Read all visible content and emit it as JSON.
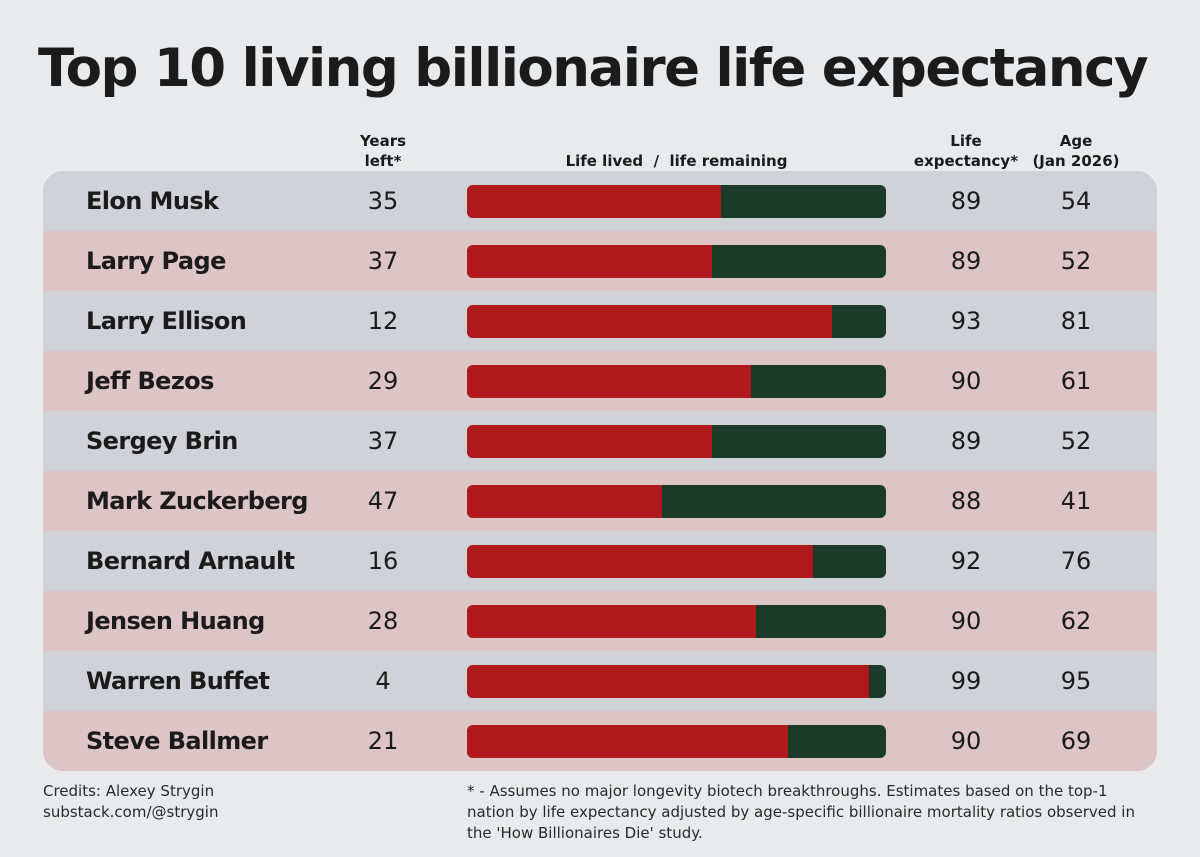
{
  "title": "Top 10 living billionaire life expectancy",
  "headers": {
    "years_left": [
      "Years",
      "left*"
    ],
    "bar": "Life lived  /  life remaining",
    "life_expectancy": [
      "Life",
      "expectancy*"
    ],
    "age": [
      "Age",
      "(Jan 2026)"
    ]
  },
  "colors": {
    "lived": "#b0191b",
    "remaining": "#1c3a2a",
    "row_gray": "#cfd2d7",
    "row_pink": "#dcc4c7"
  },
  "chart_data": {
    "type": "bar",
    "categories": [
      "Elon Musk",
      "Larry Page",
      "Larry Ellison",
      "Jeff Bezos",
      "Sergey Brin",
      "Mark Zuckerberg",
      "Bernard Arnault",
      "Jensen Huang",
      "Warren Buffet",
      "Steve Ballmer"
    ],
    "series": [
      {
        "name": "Life lived",
        "values": [
          54,
          52,
          81,
          61,
          52,
          41,
          76,
          62,
          95,
          69
        ]
      },
      {
        "name": "life remaining",
        "values": [
          35,
          37,
          12,
          29,
          37,
          47,
          16,
          28,
          4,
          21
        ]
      }
    ],
    "years_left": [
      35,
      37,
      12,
      29,
      37,
      47,
      16,
      28,
      4,
      21
    ],
    "life_expectancy": [
      89,
      89,
      93,
      90,
      89,
      88,
      92,
      90,
      99,
      90
    ],
    "age": [
      54,
      52,
      81,
      61,
      52,
      41,
      76,
      62,
      95,
      69
    ],
    "stacked": true,
    "orientation": "horizontal"
  },
  "footer": {
    "credits_line1": "Credits: Alexey Strygin",
    "credits_line2": "substack.com/@strygin",
    "note_line1": "* - Assumes no major longevity biotech breakthroughs. Estimates based on the top-1",
    "note_line2": "nation by life expectancy adjusted by age-specific billionaire mortality ratios observed in",
    "note_line3": "the 'How Billionaires Die' study."
  }
}
